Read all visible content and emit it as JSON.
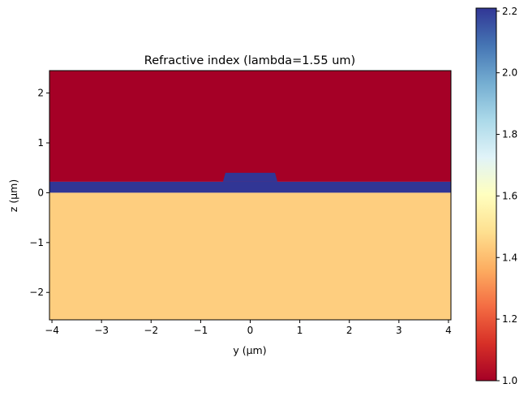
{
  "chart_data": {
    "type": "heatmap",
    "title": "Refractive index  (lambda=1.55 um)",
    "xlabel": "y (µm)",
    "ylabel": "z (µm)",
    "xlim": [
      -4.05,
      4.05
    ],
    "ylim": [
      -2.55,
      2.45
    ],
    "xticks": [
      -4,
      -3,
      -2,
      -1,
      0,
      1,
      2,
      3,
      4
    ],
    "xtick_labels": [
      "−4",
      "−3",
      "−2",
      "−1",
      "0",
      "1",
      "2",
      "3",
      "4"
    ],
    "yticks": [
      -2,
      -1,
      0,
      1,
      2
    ],
    "ytick_labels": [
      "−2",
      "−1",
      "0",
      "1",
      "2"
    ],
    "regions": [
      {
        "name": "cladding",
        "index": 1.0,
        "y_range": [
          -4.05,
          4.05
        ],
        "z_range": [
          0.22,
          2.45
        ]
      },
      {
        "name": "slab",
        "index": 2.21,
        "y_range": [
          -4.05,
          4.05
        ],
        "z_range": [
          0.0,
          0.22
        ]
      },
      {
        "name": "ridge",
        "index": 2.21,
        "y_bottom": [
          -0.55,
          0.55
        ],
        "y_top": [
          -0.5,
          0.5
        ],
        "z_range": [
          0.22,
          0.4
        ]
      },
      {
        "name": "substrate",
        "index": 1.44,
        "y_range": [
          -4.05,
          4.05
        ],
        "z_range": [
          -2.55,
          0.0
        ]
      }
    ],
    "colorbar": {
      "min": 1.0,
      "max": 2.21,
      "ticks": [
        1.0,
        1.2,
        1.4,
        1.6,
        1.8,
        2.0,
        2.2
      ],
      "tick_labels": [
        "1.0",
        "1.2",
        "1.4",
        "1.6",
        "1.8",
        "2.0",
        "2.2"
      ],
      "colormap": "RdYlBu",
      "colors": [
        "#a50026",
        "#d73027",
        "#f46d43",
        "#fdae61",
        "#fee090",
        "#ffffbf",
        "#e0f3f8",
        "#abd9e9",
        "#74add1",
        "#4575b4",
        "#313695"
      ]
    }
  }
}
